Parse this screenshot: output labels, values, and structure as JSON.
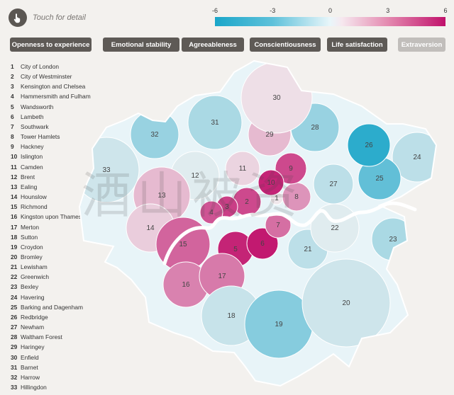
{
  "header": {
    "touch_label": "Touch for detail",
    "touch_icon": "hand-pointer-icon"
  },
  "scale": {
    "ticks": [
      {
        "label": "-6",
        "value": -6
      },
      {
        "label": "-3",
        "value": -3
      },
      {
        "label": "0",
        "value": 0
      },
      {
        "label": "3",
        "value": 3
      },
      {
        "label": "6",
        "value": 6
      }
    ],
    "colors": {
      "negative": "#1aa6c9",
      "neutral": "#f2f2f2",
      "positive": "#c0116b"
    }
  },
  "tabs": [
    {
      "label": "Openness to experience",
      "active": true
    },
    {
      "label": "Emotional stability",
      "active": true
    },
    {
      "label": "Agreeableness",
      "active": true
    },
    {
      "label": "Conscientiousness",
      "active": true
    },
    {
      "label": "Life satisfaction",
      "active": true
    },
    {
      "label": "Extraversion",
      "active": false
    }
  ],
  "boroughs": [
    {
      "n": "1",
      "name": "City of London",
      "value": 0.3
    },
    {
      "n": "2",
      "name": "City of Westminster",
      "value": 4.5
    },
    {
      "n": "3",
      "name": "Kensington and Chelsea",
      "value": 4.8
    },
    {
      "n": "4",
      "name": "Hammersmith and Fulham",
      "value": 4.2
    },
    {
      "n": "5",
      "name": "Wandsworth",
      "value": 5.5
    },
    {
      "n": "6",
      "name": "Lambeth",
      "value": 5.8
    },
    {
      "n": "7",
      "name": "Southwark",
      "value": 3.5
    },
    {
      "n": "8",
      "name": "Tower Hamlets",
      "value": 2.5
    },
    {
      "n": "9",
      "name": "Hackney",
      "value": 4.5
    },
    {
      "n": "10",
      "name": "Islington",
      "value": 5.5
    },
    {
      "n": "11",
      "name": "Camden",
      "value": 0.8
    },
    {
      "n": "12",
      "name": "Brent",
      "value": -0.5
    },
    {
      "n": "13",
      "name": "Ealing",
      "value": 1.5
    },
    {
      "n": "14",
      "name": "Hounslow",
      "value": 1.0
    },
    {
      "n": "15",
      "name": "Richmond",
      "value": 3.8
    },
    {
      "n": "16",
      "name": "Kingston upon Thames",
      "value": 3.0
    },
    {
      "n": "17",
      "name": "Merton",
      "value": 3.2
    },
    {
      "n": "18",
      "name": "Sutton",
      "value": -1.2
    },
    {
      "n": "19",
      "name": "Croydon",
      "value": -3.0
    },
    {
      "n": "20",
      "name": "Bromley",
      "value": -1.0
    },
    {
      "n": "21",
      "name": "Lewisham",
      "value": -1.5
    },
    {
      "n": "22",
      "name": "Greenwich",
      "value": -0.5
    },
    {
      "n": "23",
      "name": "Bexley",
      "value": -2.0
    },
    {
      "n": "24",
      "name": "Havering",
      "value": -1.5
    },
    {
      "n": "25",
      "name": "Barking and Dagenham",
      "value": -4.0
    },
    {
      "n": "26",
      "name": "Redbridge",
      "value": -5.5
    },
    {
      "n": "27",
      "name": "Newham",
      "value": -1.5
    },
    {
      "n": "28",
      "name": "Waltham Forest",
      "value": -2.5
    },
    {
      "n": "29",
      "name": "Haringey",
      "value": 1.5
    },
    {
      "n": "30",
      "name": "Enfield",
      "value": 0.5
    },
    {
      "n": "31",
      "name": "Barnet",
      "value": -2.0
    },
    {
      "n": "32",
      "name": "Harrow",
      "value": -2.5
    },
    {
      "n": "33",
      "name": "Hillingdon",
      "value": -1.0
    }
  ],
  "watermark": "酒山被资"
}
